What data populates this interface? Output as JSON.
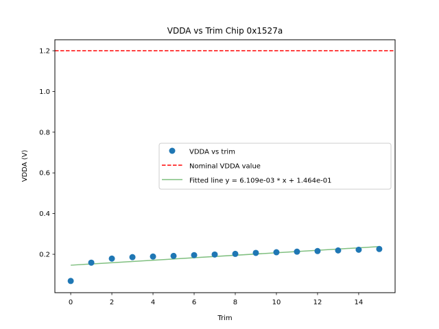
{
  "chart_data": {
    "type": "scatter",
    "title": "VDDA vs Trim Chip 0x1527a",
    "xlabel": "Trim",
    "ylabel": "VDDA (V)",
    "xlim": [
      -0.77,
      15.77
    ],
    "ylim": [
      0.0115,
      1.254
    ],
    "xticks": [
      0,
      2,
      4,
      6,
      8,
      10,
      12,
      14
    ],
    "yticks": [
      0.2,
      0.4,
      0.6,
      0.8,
      1.0,
      1.2
    ],
    "xtick_labels": [
      "0",
      "2",
      "4",
      "6",
      "8",
      "10",
      "12",
      "14"
    ],
    "ytick_labels": [
      "0.2",
      "0.4",
      "0.6",
      "0.8",
      "1.0",
      "1.2"
    ],
    "grid": false,
    "legend_position": "center-right",
    "series": [
      {
        "name": "VDDA vs trim",
        "kind": "scatter",
        "color": "#1f77b4",
        "x": [
          0,
          1,
          2,
          3,
          4,
          5,
          6,
          7,
          8,
          9,
          10,
          11,
          12,
          13,
          14,
          15
        ],
        "y": [
          0.069,
          0.159,
          0.179,
          0.186,
          0.189,
          0.192,
          0.196,
          0.199,
          0.202,
          0.207,
          0.21,
          0.213,
          0.216,
          0.219,
          0.2225,
          0.226
        ]
      },
      {
        "name": "Nominal VDDA value",
        "kind": "hline",
        "color": "#ff0000",
        "linestyle": "dashed",
        "y": 1.2
      },
      {
        "name": "Fitted line y = 6.109e-03 * x + 1.464e-01",
        "kind": "line",
        "color": "#7fbf7f",
        "slope": 0.006109,
        "intercept": 0.1464,
        "x": [
          0,
          15
        ]
      }
    ]
  }
}
